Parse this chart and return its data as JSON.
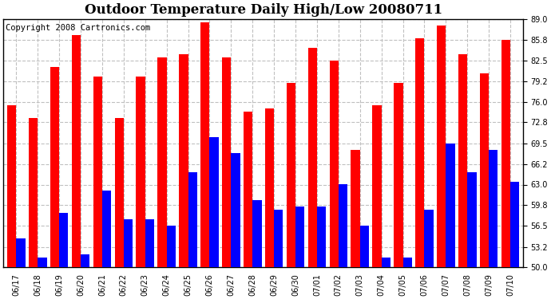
{
  "title": "Outdoor Temperature Daily High/Low 20080711",
  "copyright": "Copyright 2008 Cartronics.com",
  "labels": [
    "06/17",
    "06/18",
    "06/19",
    "06/20",
    "06/21",
    "06/22",
    "06/23",
    "06/24",
    "06/25",
    "06/26",
    "06/27",
    "06/28",
    "06/29",
    "06/30",
    "07/01",
    "07/02",
    "07/03",
    "07/04",
    "07/05",
    "07/06",
    "07/07",
    "07/08",
    "07/09",
    "07/10"
  ],
  "highs": [
    75.5,
    73.5,
    81.5,
    86.5,
    80.0,
    73.5,
    80.0,
    83.0,
    83.5,
    88.5,
    83.0,
    74.5,
    75.0,
    79.0,
    84.5,
    82.5,
    68.5,
    75.5,
    79.0,
    86.0,
    88.0,
    83.5,
    80.5,
    85.8
  ],
  "lows": [
    54.5,
    51.5,
    58.5,
    52.0,
    62.0,
    57.5,
    57.5,
    56.5,
    65.0,
    70.5,
    68.0,
    60.5,
    59.0,
    59.5,
    59.5,
    63.0,
    56.5,
    51.5,
    51.5,
    59.0,
    69.5,
    65.0,
    68.5,
    63.5
  ],
  "high_color": "#FF0000",
  "low_color": "#0000FF",
  "bg_color": "#FFFFFF",
  "grid_color": "#C0C0C0",
  "ymin": 50.0,
  "ymax": 89.0,
  "yticks": [
    50.0,
    53.2,
    56.5,
    59.8,
    63.0,
    66.2,
    69.5,
    72.8,
    76.0,
    79.2,
    82.5,
    85.8,
    89.0
  ],
  "bar_width": 0.42,
  "title_fontsize": 12,
  "tick_fontsize": 7,
  "copyright_fontsize": 7.5
}
